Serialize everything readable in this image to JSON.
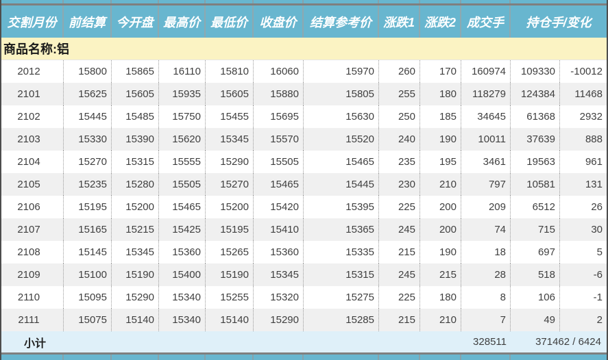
{
  "header": {
    "columns": [
      "交割月份",
      "前结算",
      "今开盘",
      "最高价",
      "最低价",
      "收盘价",
      "结算参考价",
      "涨跌1",
      "涨跌2",
      "成交手",
      "持仓手/变化"
    ]
  },
  "commodity": {
    "label": "商品名称:铝"
  },
  "rows": [
    [
      "2012",
      "15800",
      "15865",
      "16110",
      "15810",
      "16060",
      "15970",
      "260",
      "170",
      "160974",
      "109330",
      "-10012"
    ],
    [
      "2101",
      "15625",
      "15605",
      "15935",
      "15605",
      "15880",
      "15805",
      "255",
      "180",
      "118279",
      "124384",
      "11468"
    ],
    [
      "2102",
      "15445",
      "15485",
      "15750",
      "15455",
      "15695",
      "15630",
      "250",
      "185",
      "34645",
      "61368",
      "2932"
    ],
    [
      "2103",
      "15330",
      "15390",
      "15620",
      "15345",
      "15570",
      "15520",
      "240",
      "190",
      "10011",
      "37639",
      "888"
    ],
    [
      "2104",
      "15270",
      "15315",
      "15555",
      "15290",
      "15505",
      "15465",
      "235",
      "195",
      "3461",
      "19563",
      "961"
    ],
    [
      "2105",
      "15235",
      "15280",
      "15505",
      "15270",
      "15465",
      "15445",
      "230",
      "210",
      "797",
      "10581",
      "131"
    ],
    [
      "2106",
      "15195",
      "15200",
      "15465",
      "15200",
      "15420",
      "15395",
      "225",
      "200",
      "209",
      "6512",
      "26"
    ],
    [
      "2107",
      "15165",
      "15215",
      "15425",
      "15195",
      "15410",
      "15365",
      "245",
      "200",
      "74",
      "715",
      "30"
    ],
    [
      "2108",
      "15145",
      "15345",
      "15360",
      "15265",
      "15360",
      "15335",
      "215",
      "190",
      "18",
      "697",
      "5"
    ],
    [
      "2109",
      "15100",
      "15190",
      "15400",
      "15190",
      "15345",
      "15315",
      "245",
      "215",
      "28",
      "518",
      "-6"
    ],
    [
      "2110",
      "15095",
      "15290",
      "15340",
      "15255",
      "15320",
      "15275",
      "225",
      "180",
      "8",
      "106",
      "-1"
    ],
    [
      "2111",
      "15075",
      "15140",
      "15340",
      "15140",
      "15290",
      "15285",
      "215",
      "210",
      "7",
      "49",
      "2"
    ]
  ],
  "subtotal": {
    "label": "小计",
    "volume": "328511",
    "open_interest_change": "371462 / 6424"
  },
  "colors": {
    "header_bg": "#68b6cf",
    "header_text": "#ffffff",
    "commodity_bg": "#fbf3c3",
    "row_alt_bg": "#f0f0f0",
    "subtotal_bg": "#dff0f9",
    "data_text": "#3f3f3f",
    "divider_dotted": "#999999",
    "separator": "#7f7f7f"
  }
}
